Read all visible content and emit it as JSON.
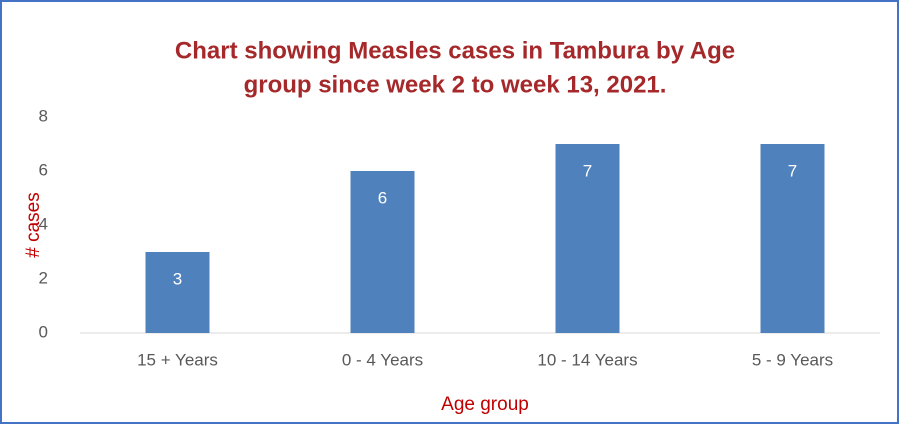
{
  "chart_data": {
    "type": "bar",
    "title": [
      "Chart showing Measles cases in Tambura by Age",
      "group since week 2 to week 13, 2021."
    ],
    "x_label": "Age group",
    "y_label": "# cases",
    "categories": [
      "15 + Years",
      "0 - 4 Years",
      "10 - 14 Years",
      "5 - 9 Years"
    ],
    "values": [
      3,
      6,
      7,
      7
    ],
    "color": "#4f81bd",
    "ylim": [
      0,
      8
    ],
    "yticks": [
      0,
      2,
      4,
      6,
      8
    ],
    "grid": false
  }
}
